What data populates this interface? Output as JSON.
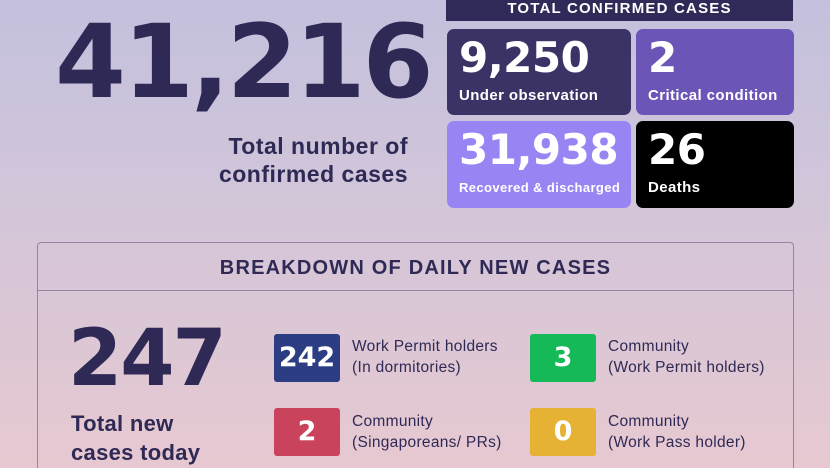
{
  "total": {
    "value": "41,216",
    "label_line1": "Total number of",
    "label_line2": "confirmed cases"
  },
  "confirmed_header": "TOTAL CONFIRMED CASES",
  "stats": [
    {
      "value": "9,250",
      "label": "Under observation",
      "color": "#3b3266"
    },
    {
      "value": "2",
      "label": "Critical condition",
      "color": "#6b56b7"
    },
    {
      "value": "31,938",
      "label": "Recovered & discharged",
      "color": "#9984f4"
    },
    {
      "value": "26",
      "label": "Deaths",
      "color": "#000000"
    }
  ],
  "breakdown": {
    "title": "BREAKDOWN OF DAILY NEW CASES",
    "new_total": "247",
    "new_total_label_line1": "Total new",
    "new_total_label_line2": "cases today",
    "categories": [
      {
        "value": "242",
        "line1": "Work Permit holders",
        "line2": "(In dormitories)",
        "color": "#2c3d84"
      },
      {
        "value": "3",
        "line1": "Community",
        "line2": "(Work Permit holders)",
        "color": "#15b957"
      },
      {
        "value": "2",
        "line1": "Community",
        "line2": "(Singaporeans/ PRs)",
        "color": "#c9435d"
      },
      {
        "value": "0",
        "line1": "Community",
        "line2": "(Work Pass holder)",
        "color": "#e6b233"
      }
    ]
  }
}
